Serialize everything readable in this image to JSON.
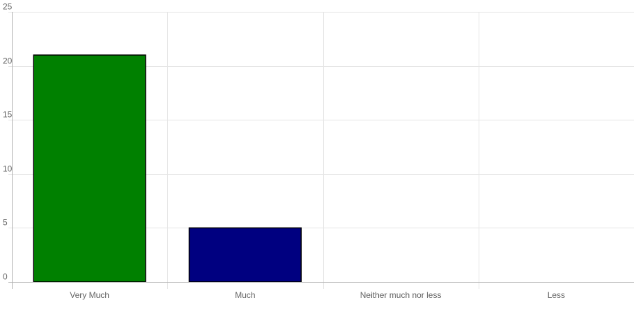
{
  "chart_data": {
    "type": "bar",
    "categories": [
      "Very Much",
      "Much",
      "Neither much nor less",
      "Less"
    ],
    "values": [
      21,
      5,
      0,
      0
    ],
    "bar_colors": [
      "#008000",
      "#000080",
      "#008000",
      "#000080"
    ],
    "bar_border_color": "#000000",
    "title": "",
    "xlabel": "",
    "ylabel": "",
    "ylim": [
      0,
      25
    ],
    "yticks": [
      0,
      5,
      10,
      15,
      20,
      25
    ],
    "grid": true,
    "legend": "none"
  }
}
